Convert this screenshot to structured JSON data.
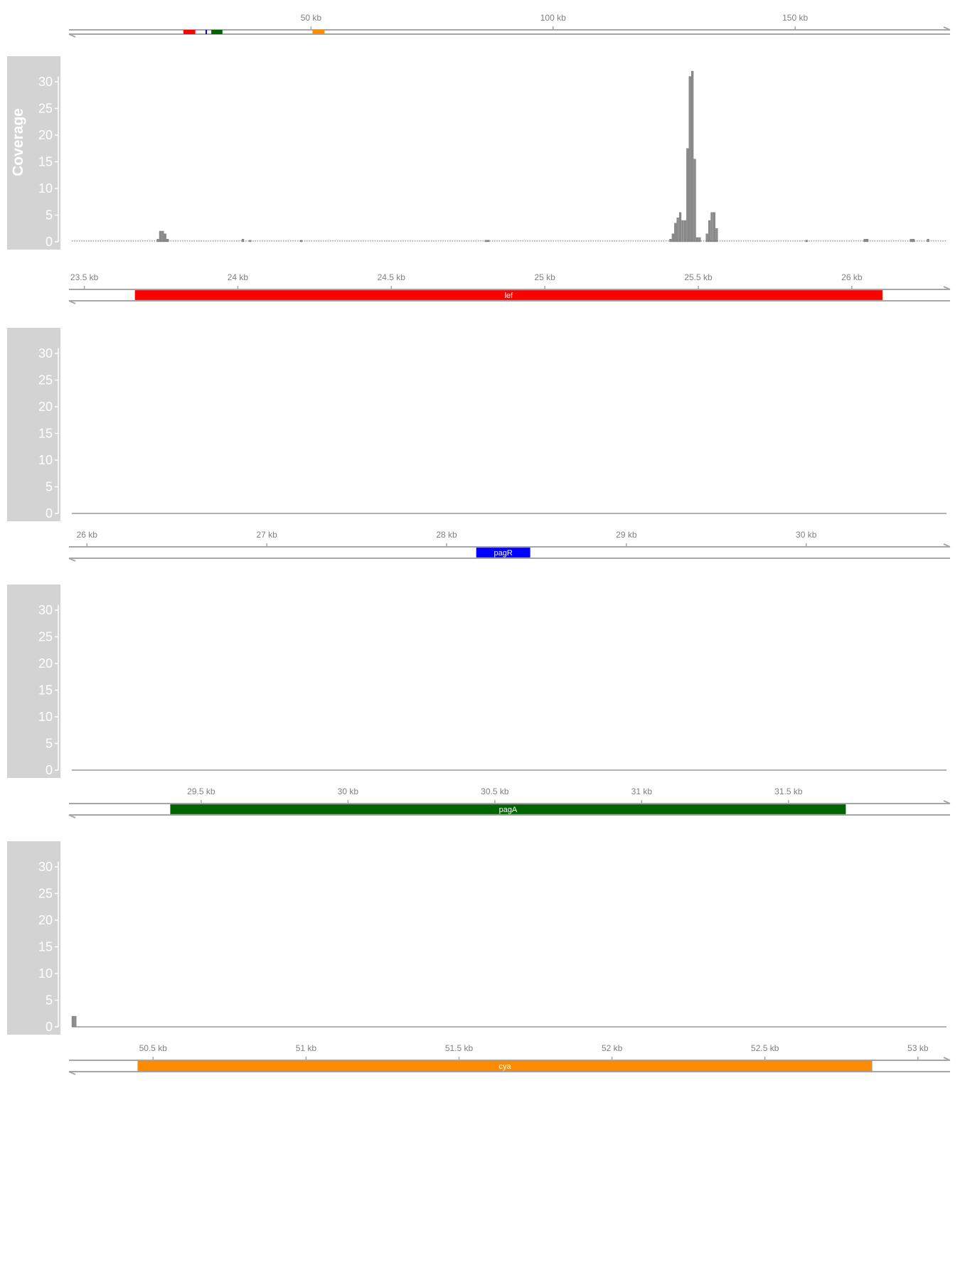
{
  "chart_data": {
    "type": "bar",
    "style": {
      "panel_bg": "#d3d3d3",
      "axis_color": "#a6a6a6",
      "tick_text_color": "#808080",
      "bar_color": "#8c8c8c",
      "baseline_color": "#666666"
    },
    "overview": {
      "ticks": [
        "50 kb",
        "100 kb",
        "150 kb"
      ],
      "tick_values_kb": [
        50,
        100,
        150
      ],
      "range_kb": [
        0,
        182
      ],
      "genes": [
        {
          "start_kb": 23.65,
          "end_kb": 26.1,
          "color": "#ff0000"
        },
        {
          "start_kb": 28.2,
          "end_kb": 28.5,
          "color": "#0000ff"
        },
        {
          "start_kb": 29.4,
          "end_kb": 31.7,
          "color": "#006400"
        },
        {
          "start_kb": 50.3,
          "end_kb": 52.8,
          "color": "#ff8c00"
        }
      ]
    },
    "panels": [
      {
        "ylabel": "Coverage",
        "ylim": [
          0,
          32
        ],
        "yticks": [
          "0",
          "5",
          "10",
          "15",
          "20",
          "25",
          "30"
        ],
        "range_kb": [
          23.45,
          26.32
        ],
        "ticks": [
          "23.5 kb",
          "24 kb",
          "24.5 kb",
          "25 kb",
          "25.5 kb",
          "26 kb"
        ],
        "tick_values_kb": [
          23.5,
          24,
          24.5,
          25,
          25.5,
          26
        ],
        "gene": {
          "name": "lef",
          "start_kb": 23.665,
          "end_kb": 26.1,
          "color": "#ff0000"
        },
        "bins": 360,
        "nonzero": [
          [
            35,
            0.5
          ],
          [
            36,
            2
          ],
          [
            37,
            2
          ],
          [
            38,
            1.5
          ],
          [
            39,
            0.5
          ],
          [
            70,
            0.5
          ],
          [
            73,
            0.3
          ],
          [
            94,
            0.3
          ],
          [
            170,
            0.3
          ],
          [
            171,
            0.3
          ],
          [
            246,
            0.5
          ],
          [
            247,
            1.5
          ],
          [
            248,
            3.5
          ],
          [
            249,
            4.5
          ],
          [
            250,
            5.5
          ],
          [
            251,
            4
          ],
          [
            252,
            4
          ],
          [
            253,
            17.5
          ],
          [
            254,
            31
          ],
          [
            255,
            32
          ],
          [
            256,
            15.5
          ],
          [
            257,
            0.8
          ],
          [
            258,
            0.8
          ],
          [
            261,
            1.5
          ],
          [
            262,
            4
          ],
          [
            263,
            5.5
          ],
          [
            264,
            5.5
          ],
          [
            265,
            2.5
          ],
          [
            302,
            0.3
          ],
          [
            326,
            0.5
          ],
          [
            327,
            0.5
          ],
          [
            345,
            0.5
          ],
          [
            346,
            0.5
          ],
          [
            352,
            0.5
          ]
        ]
      },
      {
        "ylabel": "",
        "ylim": [
          0,
          32
        ],
        "yticks": [
          "0",
          "5",
          "10",
          "15",
          "20",
          "25",
          "30"
        ],
        "range_kb": [
          25.9,
          30.8
        ],
        "ticks": [
          "26 kb",
          "27 kb",
          "28 kb",
          "29 kb",
          "30 kb"
        ],
        "tick_values_kb": [
          26,
          27,
          28,
          29,
          30
        ],
        "gene": {
          "name": "pagR",
          "start_kb": 28.165,
          "end_kb": 28.465,
          "color": "#0000ff"
        },
        "bins": 360,
        "nonzero": []
      },
      {
        "ylabel": "",
        "ylim": [
          0,
          32
        ],
        "yticks": [
          "0",
          "5",
          "10",
          "15",
          "20",
          "25",
          "30"
        ],
        "range_kb": [
          29.05,
          32.05
        ],
        "ticks": [
          "29.5 kb",
          "30 kb",
          "30.5 kb",
          "31 kb",
          "31.5 kb"
        ],
        "tick_values_kb": [
          29.5,
          30,
          30.5,
          31,
          31.5
        ],
        "gene": {
          "name": "pagA",
          "start_kb": 29.395,
          "end_kb": 31.695,
          "color": "#006400"
        },
        "bins": 360,
        "nonzero": []
      },
      {
        "ylabel": "",
        "ylim": [
          0,
          32
        ],
        "yticks": [
          "0",
          "5",
          "10",
          "15",
          "20",
          "25",
          "30"
        ],
        "range_kb": [
          50.225,
          53.105
        ],
        "ticks": [
          "50.5 kb",
          "51 kb",
          "51.5 kb",
          "52 kb",
          "52.5 kb",
          "53 kb"
        ],
        "tick_values_kb": [
          50.5,
          51,
          51.5,
          52,
          52.5,
          53
        ],
        "gene": {
          "name": "cya",
          "start_kb": 50.45,
          "end_kb": 52.85,
          "color": "#ff8c00"
        },
        "bins": 360,
        "nonzero": [
          [
            0,
            2
          ],
          [
            1,
            2
          ]
        ]
      }
    ]
  }
}
